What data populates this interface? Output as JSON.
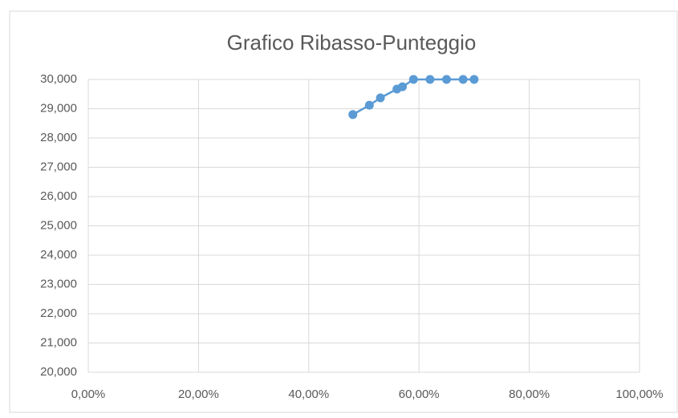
{
  "chart_data": {
    "type": "scatter",
    "title": "Grafico Ribasso-Punteggio",
    "x": [
      0.48,
      0.51,
      0.53,
      0.56,
      0.57,
      0.59,
      0.62,
      0.65,
      0.68,
      0.7
    ],
    "values": [
      28.8,
      29.12,
      29.37,
      29.67,
      29.75,
      30,
      30,
      30,
      30,
      30
    ],
    "color": "#5b9bd5",
    "xlim": [
      0,
      1
    ],
    "xticks": [
      {
        "value": 0,
        "label": "0,00%"
      },
      {
        "value": 0.2,
        "label": "20,00%"
      },
      {
        "value": 0.4,
        "label": "40,00%"
      },
      {
        "value": 0.6,
        "label": "60,00%"
      },
      {
        "value": 0.8,
        "label": "80,00%"
      },
      {
        "value": 1,
        "label": "100,00%"
      }
    ],
    "ylim": [
      20,
      30
    ],
    "yticks": [
      {
        "value": 20,
        "label": "20,000"
      },
      {
        "value": 21,
        "label": "21,000"
      },
      {
        "value": 22,
        "label": "22,000"
      },
      {
        "value": 23,
        "label": "23,000"
      },
      {
        "value": 24,
        "label": "24,000"
      },
      {
        "value": 25,
        "label": "25,000"
      },
      {
        "value": 26,
        "label": "26,000"
      },
      {
        "value": 27,
        "label": "27,000"
      },
      {
        "value": 28,
        "label": "28,000"
      },
      {
        "value": 29,
        "label": "29,000"
      },
      {
        "value": 30,
        "label": "30,000"
      }
    ],
    "grid": true
  }
}
